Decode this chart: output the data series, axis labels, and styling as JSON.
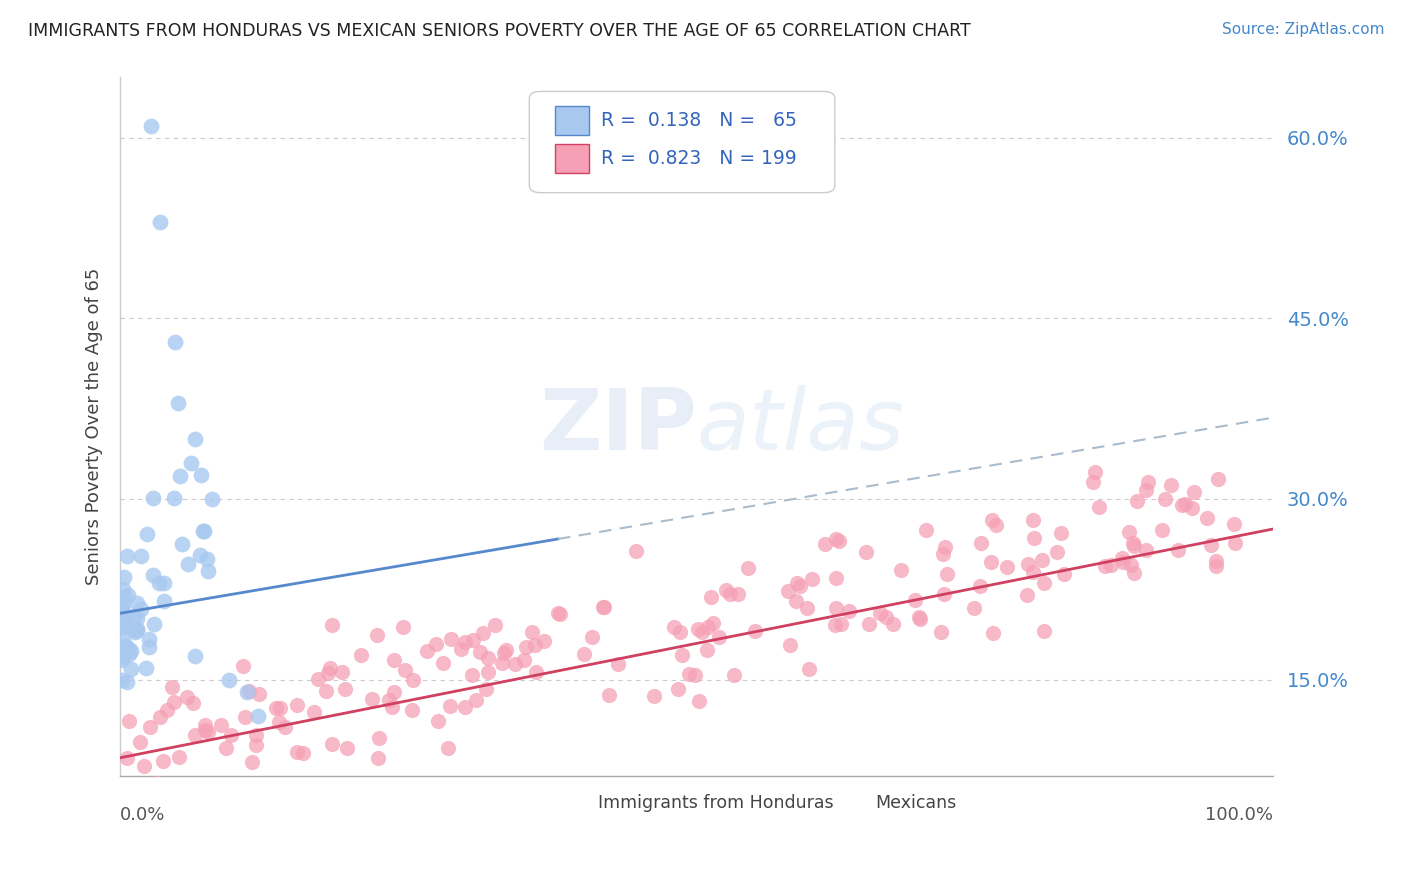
{
  "title": "IMMIGRANTS FROM HONDURAS VS MEXICAN SENIORS POVERTY OVER THE AGE OF 65 CORRELATION CHART",
  "source": "Source: ZipAtlas.com",
  "ylabel": "Seniors Poverty Over the Age of 65",
  "legend_text1": "R = 0.138   N =  65",
  "legend_text2": "R = 0.823   N = 199",
  "watermark": "ZIPatlas",
  "series1_color": "#a8c8f0",
  "series1_line_color": "#5588cc",
  "series2_color": "#f5a0b5",
  "series2_line_color": "#d04060",
  "background_color": "#ffffff",
  "yticks": [
    0.15,
    0.3,
    0.45,
    0.6
  ],
  "xlim": [
    0.0,
    1.0
  ],
  "ylim": [
    0.07,
    0.65
  ]
}
